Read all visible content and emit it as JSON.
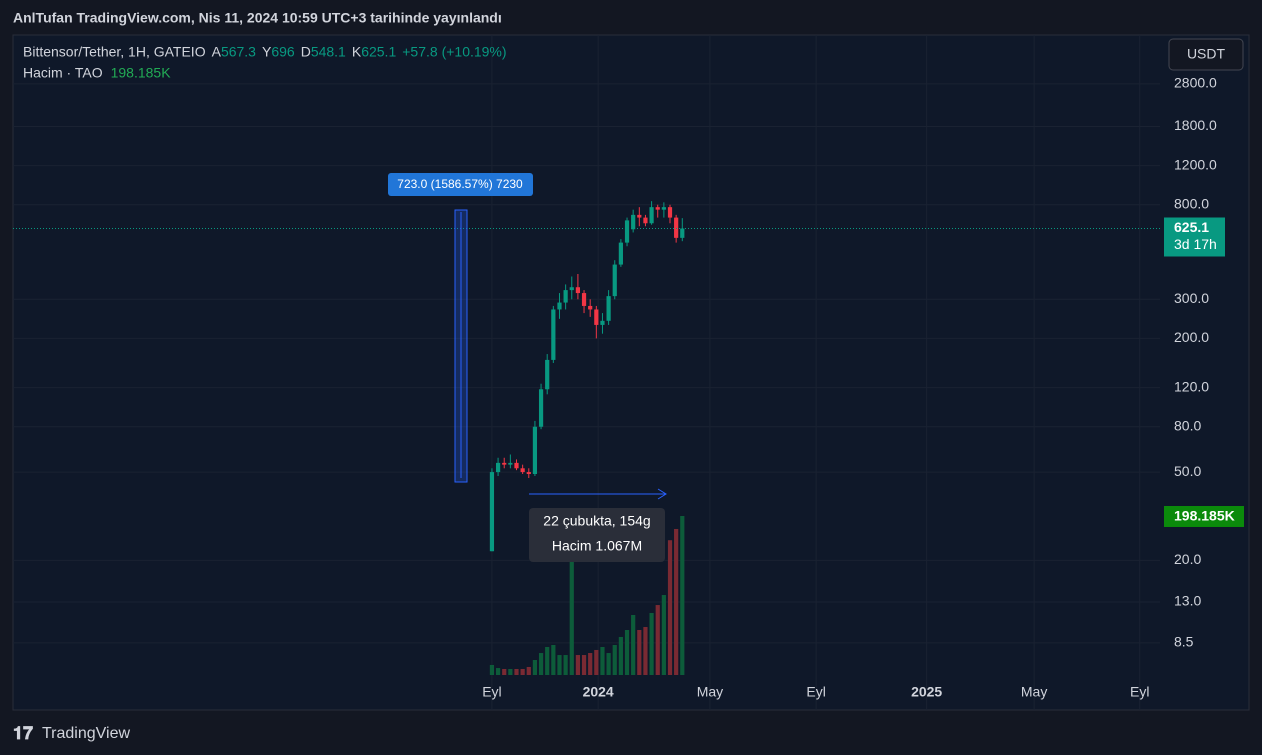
{
  "header": {
    "publisher": "AnlTufan TradingView.com, Nis 11, 2024 10:59 UTC+3 tarihinde yayınlandı",
    "currency_button": "USDT",
    "brand": "TradingView"
  },
  "chart_data": {
    "type": "candlestick",
    "title": "Bittensor/Tether, 1H, GATEIO",
    "ohlc_names": [
      "A",
      "Y",
      "D",
      "K"
    ],
    "change": "+57.8 (+10.19%)",
    "categories": [
      null,
      null,
      null,
      null,
      null,
      null,
      null,
      null,
      null,
      null,
      null,
      null,
      null,
      null,
      null,
      null,
      null,
      null,
      null,
      null,
      null,
      null,
      null,
      null,
      null,
      null,
      null,
      null,
      null,
      null,
      null,
      null
    ],
    "open": [
      22,
      50,
      55,
      54,
      55,
      52,
      50,
      49,
      80,
      118,
      160,
      270,
      290,
      330,
      340,
      320,
      280,
      270,
      230,
      240,
      310,
      430,
      540,
      620,
      720,
      700,
      660,
      780,
      760,
      780,
      700,
      567.3
    ],
    "high": [
      52,
      58,
      58,
      60,
      57,
      54,
      52,
      85,
      125,
      170,
      280,
      320,
      350,
      380,
      390,
      330,
      300,
      280,
      260,
      330,
      450,
      560,
      700,
      760,
      780,
      720,
      830,
      800,
      820,
      800,
      720,
      696.0
    ],
    "low": [
      22,
      48,
      52,
      52,
      51,
      49,
      47,
      48,
      78,
      112,
      155,
      245,
      270,
      300,
      300,
      260,
      250,
      200,
      210,
      230,
      300,
      420,
      520,
      600,
      640,
      640,
      650,
      700,
      700,
      660,
      540,
      548.1
    ],
    "close": [
      50,
      55,
      54,
      55,
      52,
      50,
      49,
      80,
      118,
      160,
      270,
      290,
      330,
      340,
      320,
      280,
      270,
      230,
      240,
      310,
      430,
      540,
      680,
      720,
      700,
      660,
      780,
      760,
      780,
      700,
      567.3,
      625.1
    ],
    "up_color": "#089981",
    "down_color": "#f23645",
    "price_label": "625.1",
    "countdown": "3d 17h",
    "volume": {
      "name": "Hacim · TAO",
      "axis": "y2",
      "up_color": "#0d5c3a",
      "down_color": "#7a2a33",
      "values": [
        12500,
        8700,
        7500,
        7500,
        7500,
        7500,
        10000,
        18700,
        27400,
        34900,
        37400,
        24900,
        24900,
        180700,
        24900,
        24900,
        27400,
        31200,
        34900,
        27400,
        37400,
        47400,
        56100,
        74800,
        56100,
        59800,
        77300,
        87200,
        99700,
        168000,
        182000,
        198185
      ],
      "last_label": "198.185K",
      "label_color": "#0b8a0b"
    },
    "ylim": [
      4.24,
      4650
    ],
    "log_scale": true,
    "yticks": [
      {
        "value": 2800,
        "label": "2800.0"
      },
      {
        "value": 1800,
        "label": "1800.0"
      },
      {
        "value": 1200,
        "label": "1200.0"
      },
      {
        "value": 800,
        "label": "800.0"
      },
      {
        "value": 300,
        "label": "300.0"
      },
      {
        "value": 200,
        "label": "200.0"
      },
      {
        "value": 120,
        "label": "120.0"
      },
      {
        "value": 80,
        "label": "80.0"
      },
      {
        "value": 50,
        "label": "50.0"
      },
      {
        "value": 20,
        "label": "20.0"
      },
      {
        "value": 13,
        "label": "13.0"
      },
      8.5
    ],
    "y2lim": [
      0,
      797700
    ],
    "xlim": [
      -78,
      108.8
    ],
    "xticks": [
      {
        "value": 0,
        "label": "Eyl"
      },
      {
        "value": 17.3,
        "label": "2024"
      },
      {
        "value": 35.5,
        "label": "May"
      },
      {
        "value": 52.8,
        "label": "Eyl"
      },
      {
        "value": 70.8,
        "label": "2025"
      },
      {
        "value": 88.3,
        "label": "May"
      },
      {
        "value": 105.5,
        "label": "Eyl"
      }
    ],
    "grid": true,
    "annotations": {
      "range_label": "723.0 (1586.57%) 7230",
      "bars_label": "22 çubukta, 154g",
      "volume_label": "Hacim 1.067M"
    }
  }
}
